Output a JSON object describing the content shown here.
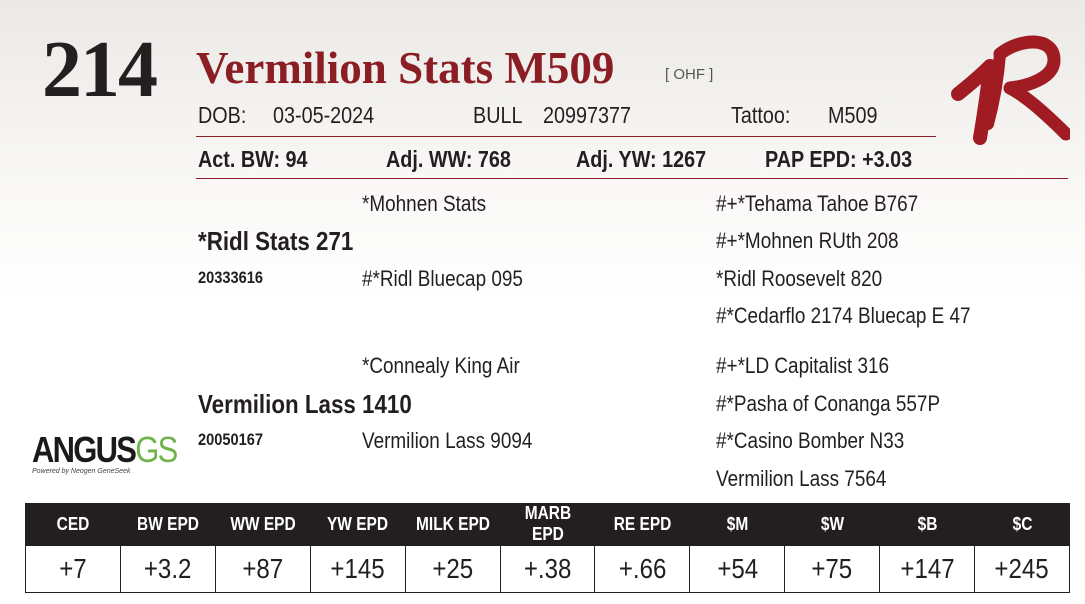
{
  "header": {
    "lot_number": "214",
    "animal_name": "Vermilion Stats M509",
    "tag": "[ OHF ]",
    "dob_label": "DOB:",
    "dob": "03-05-2024",
    "sex": "BULL",
    "registration": "20997377",
    "tattoo_label": "Tattoo:",
    "tattoo": "M509"
  },
  "stats": {
    "act_bw": "Act. BW: 94",
    "adj_ww": "Adj. WW: 768",
    "adj_yw": "Adj. YW: 1267",
    "pap_epd": "PAP EPD: +3.03"
  },
  "pedigree": {
    "sire": "*Ridl Stats 271",
    "sire_reg": "20333616",
    "sire_sire": "*Mohnen Stats",
    "sire_dam": "#*Ridl Bluecap 095",
    "sss": "#+*Tehama Tahoe B767",
    "ssd": "#+*Mohnen RUth 208",
    "sds": "*Ridl Roosevelt 820",
    "sdd": "#*Cedarflo 2174 Bluecap E 47",
    "dam": "Vermilion Lass 1410",
    "dam_reg": "20050167",
    "dam_sire": "*Connealy King Air",
    "dam_dam": "Vermilion Lass 9094",
    "dss": "#+*LD Capitalist 316",
    "dsd": "#*Pasha of Conanga 557P",
    "dds": "#*Casino Bomber N33",
    "ddd": "Vermilion Lass 7564"
  },
  "logos": {
    "angus_a": "ANGUS",
    "angus_b": "GS",
    "powered": "Powered by Neogen GeneSeek",
    "brand_mark": "VR",
    "brand_color": "#a01c22"
  },
  "epd_table": {
    "headers": [
      "CED",
      "BW EPD",
      "WW EPD",
      "YW EPD",
      "MILK EPD",
      "MARB EPD",
      "RE EPD",
      "$M",
      "$W",
      "$B",
      "$C"
    ],
    "values": [
      "+7",
      "+3.2",
      "+87",
      "+145",
      "+25",
      "+.38",
      "+.66",
      "+54",
      "+75",
      "+147",
      "+245"
    ]
  },
  "colors": {
    "accent": "#8b1e24",
    "text": "#231f20",
    "header_bg": "#231f20"
  }
}
